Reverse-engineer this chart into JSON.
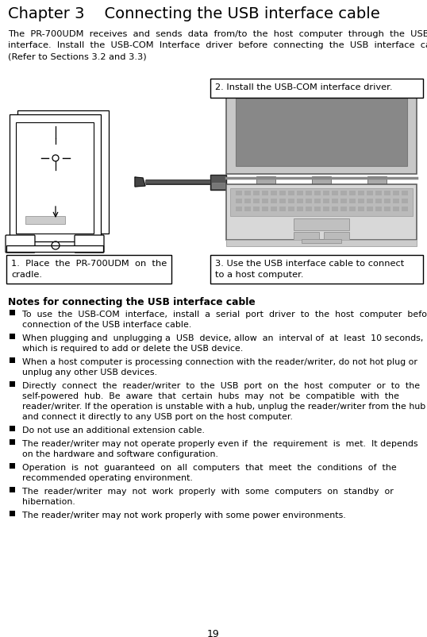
{
  "title": "Chapter 3    Connecting the USB interface cable",
  "intro_line1": "The  PR-700UDM  receives  and  sends  data  from/to  the  host  computer  through  the  USB-COM",
  "intro_line2": "interface.  Install  the  USB-COM  Interface  driver  before  connecting  the  USB  interface  cable.",
  "intro_line3": "(Refer to Sections 3.2 and 3.3)",
  "box1_line1": "1.  Place  the  PR-700UDM  on  the",
  "box1_line2": "cradle.",
  "box2_text": "2. Install the USB-COM interface driver.",
  "box3_line1": "3. Use the USB interface cable to connect",
  "box3_line2": "to a host computer.",
  "notes_title": "Notes for connecting the USB interface cable",
  "bullets": [
    "To  use  the  USB-COM  interface,  install  a  serial  port  driver  to  the  host  computer  before\nconnection of the USB interface cable.",
    "When plugging and  unplugging a  USB  device, allow  an  interval of  at  least  10 seconds,\nwhich is required to add or delete the USB device.",
    "When a host computer is processing connection with the reader/writer, do not hot plug or\nunplug any other USB devices.",
    "Directly  connect  the  reader/writer  to  the  USB  port  on  the  host  computer  or  to  the\nself-powered  hub.  Be  aware  that  certain  hubs  may  not  be  compatible  with  the\nreader/writer. If the operation is unstable with a hub, unplug the reader/writer from the hub\nand connect it directly to any USB port on the host computer.",
    "Do not use an additional extension cable.",
    "The reader/writer may not operate properly even if  the  requirement  is  met.  It depends\non the hardware and software configuration.",
    "Operation  is  not  guaranteed  on  all  computers  that  meet  the  conditions  of  the\nrecommended operating environment.",
    "The  reader/writer  may  not  work  properly  with  some  computers  on  standby  or\nhibernation.",
    "The reader/writer may not work properly with some power environments."
  ],
  "page_number": "19",
  "bg_color": "#ffffff",
  "text_color": "#000000"
}
